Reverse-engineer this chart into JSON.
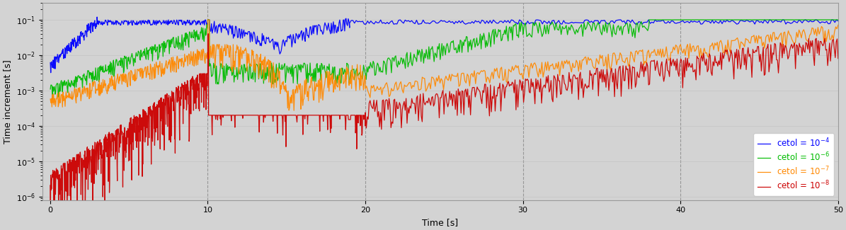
{
  "xlabel": "Time [s]",
  "ylabel": "Time increment [s]",
  "xlim": [
    -0.5,
    50
  ],
  "ylim_log": [
    8e-07,
    0.3
  ],
  "xticks": [
    0,
    10,
    20,
    30,
    40,
    50
  ],
  "vlines": [
    10,
    20,
    30,
    40
  ],
  "bg_color": "#d3d3d3",
  "legend_labels": [
    "cetol = $10^{-4}$",
    "cetol = $10^{-6}$",
    "cetol = $10^{-7}$",
    "cetol = $10^{-8}$"
  ],
  "legend_colors": [
    "#0000ff",
    "#00bb00",
    "#ff8800",
    "#cc0000"
  ],
  "line_colors": [
    "#0000ff",
    "#00bb00",
    "#ff8800",
    "#cc0000"
  ]
}
